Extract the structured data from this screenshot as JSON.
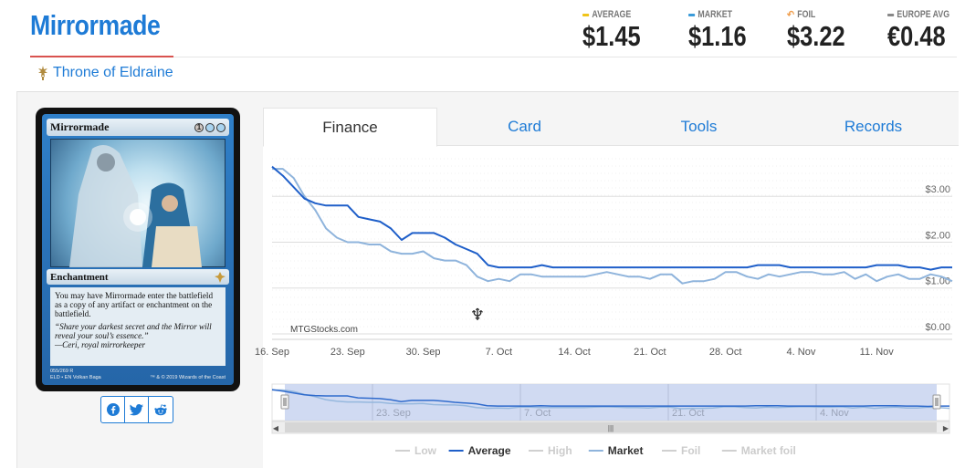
{
  "header": {
    "title": "Mirrormade",
    "set_name": "Throne of Eldraine"
  },
  "prices": [
    {
      "label": "AVERAGE",
      "value": "$1.45",
      "color": "#f0c419"
    },
    {
      "label": "MARKET",
      "value": "$1.16",
      "color": "#3a9bd9"
    },
    {
      "label": "FOIL",
      "value": "$3.22",
      "color": "#f0a050"
    },
    {
      "label": "EUROPE AVG",
      "value": "€0.48",
      "color": "#888888"
    }
  ],
  "card": {
    "name": "Mirrormade",
    "mana": [
      "1",
      "U",
      "U"
    ],
    "type_line": "Enchantment",
    "rules_text": "You may have Mirrormade enter the battlefield as a copy of any artifact or enchantment on the battlefield.",
    "flavor_text": "“Share your darkest secret and the Mirror will reveal your soul’s essence.”",
    "flavor_attrib": "—Ceri, royal mirrorkeeper",
    "collector_line1": "055/269 R",
    "collector_line2": "ELD • EN",
    "artist": "Volkan Baga",
    "copyright": "™ & © 2019 Wizards of the Coast"
  },
  "share": [
    {
      "name": "facebook-share-button",
      "icon": "facebook-icon"
    },
    {
      "name": "twitter-share-button",
      "icon": "twitter-icon"
    },
    {
      "name": "reddit-share-button",
      "icon": "reddit-icon"
    }
  ],
  "tabs": [
    {
      "label": "Finance",
      "active": true
    },
    {
      "label": "Card",
      "active": false
    },
    {
      "label": "Tools",
      "active": false
    },
    {
      "label": "Records",
      "active": false
    }
  ],
  "chart_data": {
    "type": "line",
    "watermark": "MTGStocks.com",
    "x_ticks": [
      "16. Sep",
      "23. Sep",
      "30. Sep",
      "7. Oct",
      "14. Oct",
      "21. Oct",
      "28. Oct",
      "4. Nov",
      "11. Nov"
    ],
    "y_ticks": [
      "$0.00",
      "$1.00",
      "$2.00",
      "$3.00"
    ],
    "ylim": [
      0,
      3.9
    ],
    "navigator_ticks": [
      "23. Sep",
      "7. Oct",
      "21. Oct",
      "4. Nov"
    ],
    "legend": [
      {
        "name": "Low",
        "color": "#cccccc",
        "active": false
      },
      {
        "name": "Average",
        "color": "#1f5fc9",
        "active": true
      },
      {
        "name": "High",
        "color": "#cccccc",
        "active": false
      },
      {
        "name": "Market",
        "color": "#8fb4dc",
        "active": true
      },
      {
        "name": "Foil",
        "color": "#cccccc",
        "active": false
      },
      {
        "name": "Market foil",
        "color": "#cccccc",
        "active": false
      }
    ],
    "x_days": [
      0,
      1,
      2,
      3,
      4,
      5,
      6,
      7,
      8,
      9,
      10,
      11,
      12,
      13,
      14,
      15,
      16,
      17,
      18,
      19,
      20,
      21,
      22,
      23,
      24,
      25,
      26,
      27,
      28,
      29,
      30,
      31,
      32,
      33,
      34,
      35,
      36,
      37,
      38,
      39,
      40,
      41,
      42,
      43,
      44,
      45,
      46,
      47,
      48,
      49,
      50,
      51,
      52,
      53,
      54,
      55,
      56,
      57,
      58,
      59,
      60,
      61,
      62,
      63
    ],
    "series": [
      {
        "name": "Average",
        "color": "#1f5fc9",
        "values": [
          3.65,
          3.45,
          3.2,
          2.95,
          2.85,
          2.8,
          2.8,
          2.8,
          2.55,
          2.5,
          2.45,
          2.3,
          2.05,
          2.2,
          2.2,
          2.2,
          2.1,
          1.95,
          1.85,
          1.75,
          1.5,
          1.45,
          1.45,
          1.45,
          1.45,
          1.5,
          1.45,
          1.45,
          1.45,
          1.45,
          1.45,
          1.45,
          1.45,
          1.45,
          1.45,
          1.45,
          1.45,
          1.45,
          1.45,
          1.45,
          1.45,
          1.45,
          1.45,
          1.45,
          1.45,
          1.5,
          1.5,
          1.5,
          1.45,
          1.45,
          1.45,
          1.45,
          1.45,
          1.45,
          1.45,
          1.45,
          1.5,
          1.5,
          1.5,
          1.45,
          1.45,
          1.4,
          1.45,
          1.45
        ]
      },
      {
        "name": "Market",
        "color": "#8fb4dc",
        "values": [
          3.6,
          3.6,
          3.4,
          3.0,
          2.7,
          2.3,
          2.1,
          2.0,
          2.0,
          1.95,
          1.95,
          1.8,
          1.75,
          1.75,
          1.8,
          1.65,
          1.6,
          1.6,
          1.5,
          1.25,
          1.15,
          1.2,
          1.15,
          1.3,
          1.3,
          1.25,
          1.25,
          1.25,
          1.25,
          1.25,
          1.3,
          1.35,
          1.3,
          1.25,
          1.25,
          1.2,
          1.3,
          1.3,
          1.1,
          1.15,
          1.15,
          1.2,
          1.35,
          1.35,
          1.25,
          1.2,
          1.3,
          1.25,
          1.3,
          1.35,
          1.35,
          1.3,
          1.3,
          1.35,
          1.2,
          1.3,
          1.15,
          1.25,
          1.3,
          1.2,
          1.2,
          1.3,
          1.25,
          1.15
        ]
      }
    ]
  }
}
